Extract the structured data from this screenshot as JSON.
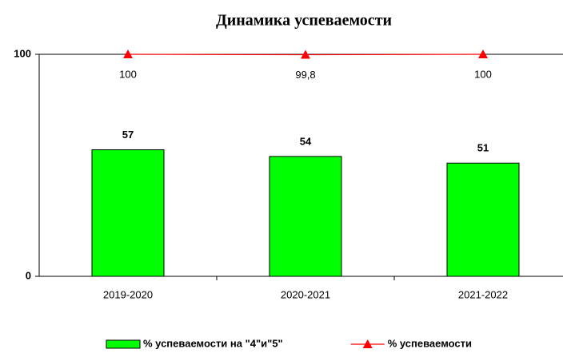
{
  "chart_data": {
    "type": "bar",
    "title": "Динамика успеваемости",
    "categories": [
      "2019-2020",
      "2020-2021",
      "2021-2022"
    ],
    "series": [
      {
        "name": "% успеваемости на \"4\"и\"5\"",
        "type": "bar",
        "color": "#00ff00",
        "values": [
          57,
          54,
          51
        ]
      },
      {
        "name": "% успеваемости",
        "type": "line",
        "color": "#ff0000",
        "values": [
          100,
          99.8,
          100
        ],
        "value_labels": [
          "100",
          "99,8",
          "100"
        ]
      }
    ],
    "ylim": [
      0,
      100
    ],
    "yticks": [
      0,
      100
    ],
    "grid": false,
    "legend": "bottom"
  }
}
